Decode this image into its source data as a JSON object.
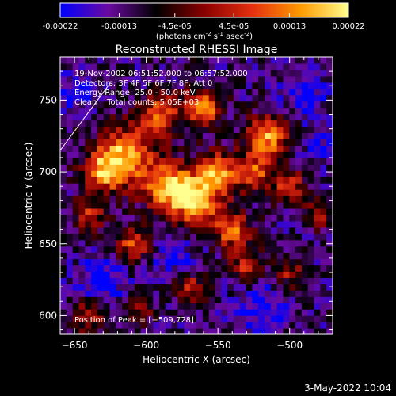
{
  "colorbar": {
    "tick_labels": [
      "-0.00022",
      "-0.00013",
      "-4.5e-05",
      "4.5e-05",
      "0.00013",
      "0.00022"
    ],
    "tick_values": [
      -0.00022,
      -0.00013,
      -4.5e-05,
      4.5e-05,
      0.00013,
      0.00022
    ],
    "range": [
      -0.00022,
      0.00022
    ],
    "units_label": "(photons cm",
    "units_sup1": "-2",
    "units_mid": " s",
    "units_sup2": "-1",
    "units_mid2": " asec",
    "units_sup3": "-2",
    "units_end": ")",
    "colors": [
      "#0000ff",
      "#6a0aa0",
      "#000000",
      "#8a0000",
      "#e43010",
      "#ff9a00",
      "#ffff90"
    ]
  },
  "footer": {
    "timestamp": "3-May-2022 10:04"
  },
  "chart_data": {
    "type": "heatmap",
    "title": "Reconstructed RHESSI Image",
    "xlabel": "Heliocentric X (arcsec)",
    "ylabel": "Heliocentric Y (arcsec)",
    "x_ticks": [
      -650,
      -600,
      -550,
      -500
    ],
    "x_tick_labels": [
      "−650",
      "−600",
      "−550",
      "−500"
    ],
    "y_ticks": [
      600,
      650,
      700,
      750
    ],
    "y_tick_labels": [
      "600",
      "650",
      "700",
      "750"
    ],
    "xlim": [
      -660,
      -470
    ],
    "ylim": [
      587,
      780
    ],
    "peak": [
      -509,
      728
    ],
    "annotations": [
      "19-Nov-2002 06:51:52.000 to 06:57:52.000",
      "Detectors: 3F 4F 5F 6F 7F 8F, Att 0",
      "Energy Range: 25.0 - 50.0 keV",
      "Clean    Total counts: 5.05E+03"
    ],
    "peak_label": "Position of Peak = [−509,728]",
    "limb_line": {
      "x": [
        -660,
        -625
      ],
      "y": [
        715,
        762
      ]
    },
    "blobs": [
      {
        "x": -615,
        "y": 712,
        "r": 14,
        "amp": 1.0
      },
      {
        "x": -630,
        "y": 700,
        "r": 10,
        "amp": 0.8
      },
      {
        "x": -590,
        "y": 740,
        "r": 10,
        "amp": 0.8
      },
      {
        "x": -560,
        "y": 745,
        "r": 9,
        "amp": 0.95
      },
      {
        "x": -585,
        "y": 690,
        "r": 12,
        "amp": 1.0
      },
      {
        "x": -565,
        "y": 680,
        "r": 12,
        "amp": 1.0
      },
      {
        "x": -550,
        "y": 700,
        "r": 10,
        "amp": 0.9
      },
      {
        "x": -540,
        "y": 660,
        "r": 9,
        "amp": 0.85
      },
      {
        "x": -515,
        "y": 725,
        "r": 10,
        "amp": 1.0
      },
      {
        "x": -525,
        "y": 700,
        "r": 9,
        "amp": 0.75
      },
      {
        "x": -500,
        "y": 690,
        "r": 8,
        "amp": 0.7
      },
      {
        "x": -610,
        "y": 650,
        "r": 9,
        "amp": 0.7
      },
      {
        "x": -640,
        "y": 670,
        "r": 8,
        "amp": 0.6
      },
      {
        "x": -530,
        "y": 635,
        "r": 8,
        "amp": 0.6
      },
      {
        "x": -570,
        "y": 620,
        "r": 8,
        "amp": 0.6
      },
      {
        "x": -500,
        "y": 630,
        "r": 7,
        "amp": 0.5
      },
      {
        "x": -640,
        "y": 600,
        "r": 8,
        "amp": 0.55
      },
      {
        "x": -605,
        "y": 605,
        "r": 7,
        "amp": 0.45
      },
      {
        "x": -480,
        "y": 670,
        "r": 7,
        "amp": 0.5
      }
    ],
    "dips": [
      {
        "x": -630,
        "y": 625,
        "r": 12,
        "amp": 0.5
      },
      {
        "x": -580,
        "y": 640,
        "r": 10,
        "amp": 0.45
      },
      {
        "x": -490,
        "y": 755,
        "r": 10,
        "amp": 0.5
      },
      {
        "x": -520,
        "y": 605,
        "r": 12,
        "amp": 0.5
      },
      {
        "x": -480,
        "y": 720,
        "r": 8,
        "amp": 0.4
      },
      {
        "x": -650,
        "y": 755,
        "r": 10,
        "amp": 0.35
      }
    ]
  }
}
